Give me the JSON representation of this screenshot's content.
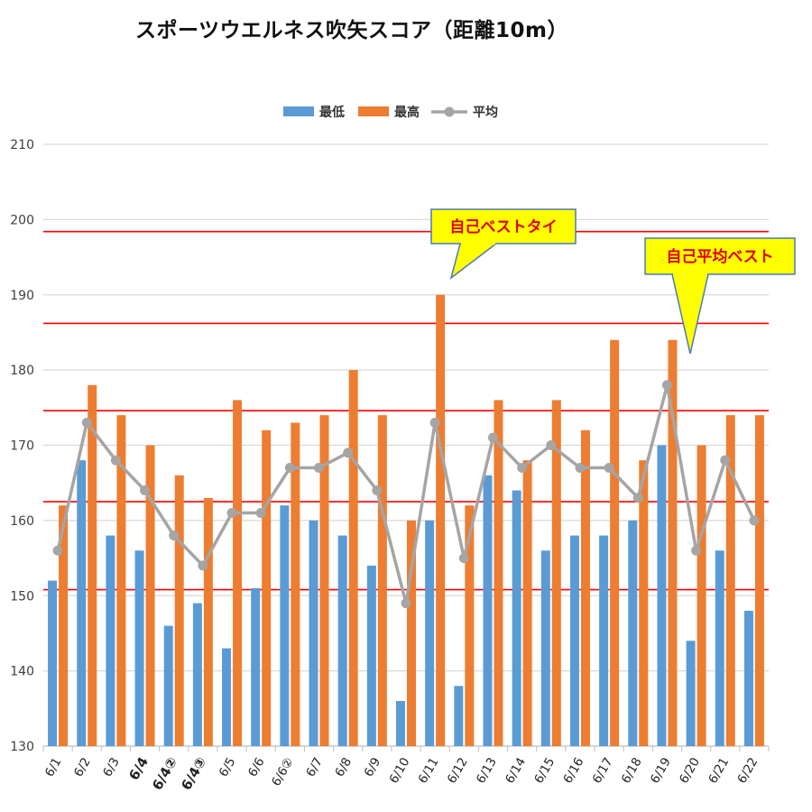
{
  "chart_data": {
    "type": "bar",
    "title": "スポーツウエルネス吹矢スコア（距離10m）",
    "categories": [
      "6/1",
      "6/2",
      "6/3",
      "6/4",
      "6/4②",
      "6/4③",
      "6/5",
      "6/6",
      "6/6②",
      "6/7",
      "6/8",
      "6/9",
      "6/10",
      "6/11",
      "6/12",
      "6/13",
      "6/14",
      "6/15",
      "6/16",
      "6/17",
      "6/18",
      "6/19",
      "6/20",
      "6/21",
      "6/22"
    ],
    "series": [
      {
        "name": "最低",
        "type": "bar",
        "color": "#5b9bd5",
        "values": [
          152,
          168,
          158,
          156,
          146,
          149,
          143,
          151,
          162,
          160,
          158,
          154,
          136,
          160,
          138,
          166,
          164,
          156,
          158,
          158,
          160,
          170,
          144,
          156,
          148
        ]
      },
      {
        "name": "最高",
        "type": "bar",
        "color": "#ed7d31",
        "values": [
          162,
          178,
          174,
          170,
          166,
          163,
          176,
          172,
          173,
          174,
          180,
          174,
          160,
          190,
          162,
          176,
          168,
          176,
          172,
          184,
          168,
          184,
          170,
          174,
          174
        ]
      },
      {
        "name": "平均",
        "type": "line",
        "color": "#a5a5a5",
        "values": [
          156,
          173,
          168,
          164,
          158,
          154,
          161,
          161,
          167,
          167,
          169,
          164,
          149,
          173,
          155,
          171,
          167,
          170,
          167,
          167,
          163,
          178,
          156,
          168,
          160
        ]
      }
    ],
    "ylim": [
      130,
      210
    ],
    "yticks": [
      130,
      140,
      150,
      160,
      170,
      180,
      190,
      200,
      210
    ],
    "grid": true,
    "legend_position": "top-center",
    "reference_lines": [
      198.4,
      186.2,
      174.6,
      162.5,
      150.8
    ],
    "reference_line_color": "#ff0000",
    "annotations": [
      {
        "text": "自己ベストタイ",
        "target_category": "6/11"
      },
      {
        "text": "自己平均ベスト",
        "target_category": "6/19"
      }
    ]
  }
}
